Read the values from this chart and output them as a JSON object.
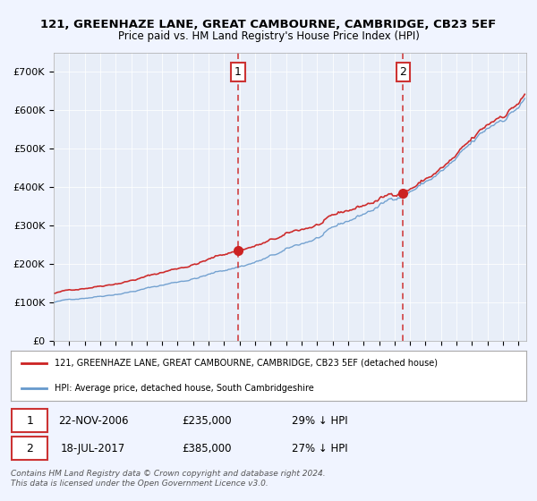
{
  "title": "121, GREENHAZE LANE, GREAT CAMBOURNE, CAMBRIDGE, CB23 5EF",
  "subtitle": "Price paid vs. HM Land Registry's House Price Index (HPI)",
  "ylabel_ticks": [
    "£0",
    "£100K",
    "£200K",
    "£300K",
    "£400K",
    "£500K",
    "£600K",
    "£700K"
  ],
  "ytick_values": [
    0,
    100000,
    200000,
    300000,
    400000,
    500000,
    600000,
    700000
  ],
  "ylim": [
    0,
    750000
  ],
  "xlim_start": 1995.0,
  "xlim_end": 2025.5,
  "background_color": "#f0f4ff",
  "plot_bg_color": "#e8eef8",
  "hpi_color": "#6699cc",
  "price_color": "#cc2222",
  "sale1_date_x": 2006.9,
  "sale1_price": 235000,
  "sale2_date_x": 2017.54,
  "sale2_price": 385000,
  "legend_label1": "121, GREENHAZE LANE, GREAT CAMBOURNE, CAMBRIDGE, CB23 5EF (detached house)",
  "legend_label2": "HPI: Average price, detached house, South Cambridgeshire",
  "sale1_text": "22-NOV-2006",
  "sale1_price_text": "£235,000",
  "sale1_hpi_text": "29% ↓ HPI",
  "sale2_text": "18-JUL-2017",
  "sale2_price_text": "£385,000",
  "sale2_hpi_text": "27% ↓ HPI",
  "footer": "Contains HM Land Registry data © Crown copyright and database right 2024.\nThis data is licensed under the Open Government Licence v3.0."
}
